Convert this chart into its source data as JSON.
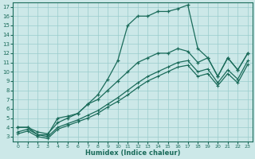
{
  "xlabel": "Humidex (Indice chaleur)",
  "xlim": [
    -0.5,
    23.5
  ],
  "ylim": [
    2.5,
    17.5
  ],
  "xticks": [
    0,
    1,
    2,
    3,
    4,
    5,
    6,
    7,
    8,
    9,
    10,
    11,
    12,
    13,
    14,
    15,
    16,
    17,
    18,
    19,
    20,
    21,
    22,
    23
  ],
  "yticks": [
    3,
    4,
    5,
    6,
    7,
    8,
    9,
    10,
    11,
    12,
    13,
    14,
    15,
    16,
    17
  ],
  "bg_color": "#cce8e8",
  "grid_color": "#99cccc",
  "line_color": "#1a6b5a",
  "line1_y": [
    4.0,
    4.0,
    3.2,
    3.2,
    5.0,
    5.2,
    5.5,
    6.5,
    7.5,
    9.2,
    11.2,
    15.0,
    16.0,
    16.0,
    16.5,
    16.5,
    16.8,
    17.2,
    12.5,
    11.5,
    9.5,
    11.5,
    10.2,
    12.0
  ],
  "line2_y": [
    4.0,
    4.0,
    3.5,
    3.3,
    4.5,
    5.0,
    5.5,
    6.5,
    7.0,
    8.0,
    9.0,
    10.0,
    11.0,
    11.5,
    12.0,
    12.0,
    12.5,
    12.2,
    11.0,
    11.5,
    9.5,
    11.5,
    10.2,
    12.0
  ],
  "line3_y": [
    3.5,
    3.8,
    3.2,
    3.0,
    4.0,
    4.4,
    4.8,
    5.3,
    5.8,
    6.5,
    7.2,
    8.0,
    8.8,
    9.5,
    10.0,
    10.5,
    11.0,
    11.2,
    10.0,
    10.3,
    8.8,
    10.2,
    9.2,
    11.2
  ],
  "line4_y": [
    3.3,
    3.6,
    3.0,
    2.8,
    3.8,
    4.2,
    4.6,
    5.0,
    5.5,
    6.2,
    6.8,
    7.5,
    8.3,
    9.0,
    9.5,
    10.0,
    10.5,
    10.7,
    9.5,
    9.8,
    8.5,
    9.8,
    8.8,
    10.8
  ]
}
